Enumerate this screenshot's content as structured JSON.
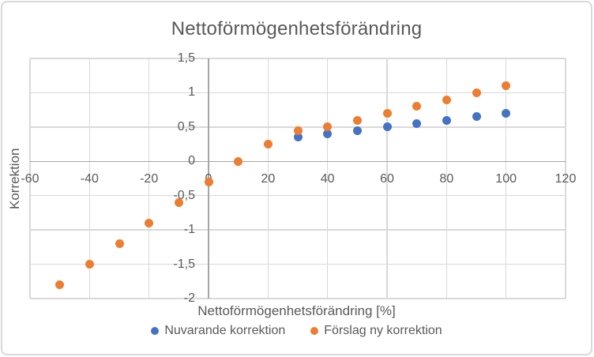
{
  "chart": {
    "title": "Nettoförmögenhetsförändring",
    "x_axis_title": "Nettoförmögenhetsförändring [%]",
    "y_axis_title": "Korrektion",
    "legend": [
      {
        "label": "Nuvarande korrektion",
        "color": "#4472C4"
      },
      {
        "label": "Förslag ny korrektion",
        "color": "#ED7D31"
      }
    ]
  },
  "colors": {
    "gridline": "#d9d9d9",
    "axisline": "#a6a6a6",
    "text": "#595959",
    "series_blue": "#4472C4",
    "series_orange": "#ED7D31",
    "chart_border": "#d9d9d9",
    "background": "#ffffff"
  },
  "chart_data": {
    "type": "scatter",
    "title": "Nettoförmögenhetsförändring",
    "xlabel": "Nettoförmögenhetsförändring [%]",
    "ylabel": "Korrektion",
    "xlim": [
      -60,
      120
    ],
    "ylim": [
      -2,
      1.5
    ],
    "grid": true,
    "legend_position": "bottom",
    "x_ticks": [
      {
        "value": -60,
        "label": "-60"
      },
      {
        "value": -40,
        "label": "-40"
      },
      {
        "value": -20,
        "label": "-20"
      },
      {
        "value": 0,
        "label": "0"
      },
      {
        "value": 20,
        "label": "20"
      },
      {
        "value": 40,
        "label": "40"
      },
      {
        "value": 60,
        "label": "60"
      },
      {
        "value": 80,
        "label": "80"
      },
      {
        "value": 100,
        "label": "100"
      },
      {
        "value": 120,
        "label": "120"
      }
    ],
    "y_ticks": [
      {
        "value": 1.5,
        "label": "1,5"
      },
      {
        "value": 1,
        "label": "1"
      },
      {
        "value": 0.5,
        "label": "0,5"
      },
      {
        "value": 0,
        "label": "0"
      },
      {
        "value": -0.5,
        "label": "-0,5"
      },
      {
        "value": -1,
        "label": "-1"
      },
      {
        "value": -1.5,
        "label": "-1,5"
      },
      {
        "value": -2,
        "label": "-2"
      }
    ],
    "series": [
      {
        "name": "Nuvarande korrektion",
        "color": "#4472C4",
        "points": [
          [
            30,
            0.35
          ],
          [
            40,
            0.4
          ],
          [
            50,
            0.45
          ],
          [
            60,
            0.5
          ],
          [
            70,
            0.55
          ],
          [
            80,
            0.6
          ],
          [
            90,
            0.65
          ],
          [
            100,
            0.7
          ]
        ]
      },
      {
        "name": "Förslag ny korrektion",
        "color": "#ED7D31",
        "points": [
          [
            -50,
            -1.8
          ],
          [
            -40,
            -1.5
          ],
          [
            -30,
            -1.2
          ],
          [
            -20,
            -0.9
          ],
          [
            -10,
            -0.6
          ],
          [
            0,
            -0.3
          ],
          [
            10,
            0
          ],
          [
            20,
            0.25
          ],
          [
            30,
            0.45
          ],
          [
            40,
            0.5
          ],
          [
            50,
            0.6
          ],
          [
            60,
            0.7
          ],
          [
            70,
            0.8
          ],
          [
            80,
            0.9
          ],
          [
            90,
            1.0
          ],
          [
            100,
            1.1
          ]
        ]
      }
    ]
  }
}
